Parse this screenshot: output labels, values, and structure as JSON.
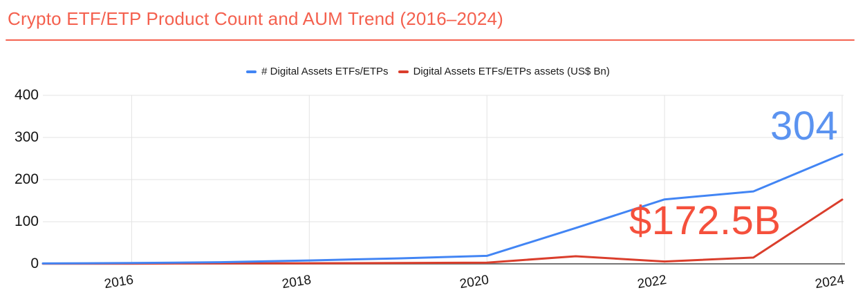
{
  "header": {
    "title": "Crypto ETF/ETP Product Count and AUM Trend (2016–2024)"
  },
  "theme": {
    "background": "#FFFFFF",
    "title_color": "#F4604E",
    "divider_color": "#F4614F",
    "grid_color": "#E3E3E3",
    "axis_line_color": "#757575",
    "tick_label_color": "#141414",
    "legend_text_color": "#1A1A1A",
    "count_series_color": "#4285F4",
    "aum_series_color": "#DA3E2C",
    "count_annotation_color": "#5B93F0",
    "aum_annotation_color": "#F5503C"
  },
  "chart_data": {
    "type": "line",
    "title": "Crypto ETF/ETP Product Count and AUM Trend (2016–2024)",
    "x": [
      2015,
      2016,
      2017,
      2018,
      2019,
      2020,
      2021,
      2022,
      2023,
      2024
    ],
    "x_ticks": [
      2016,
      2018,
      2020,
      2022,
      2024
    ],
    "x_tick_labels": [
      "2016",
      "2018",
      "2020",
      "2022",
      "2024"
    ],
    "y_ticks": [
      0,
      100,
      200,
      300,
      400
    ],
    "y_tick_labels": [
      "0",
      "100",
      "200",
      "300",
      "400"
    ],
    "ylim": [
      0,
      400
    ],
    "xlabel": "",
    "ylabel": "",
    "grid": true,
    "legend_position": "top-center",
    "series": [
      {
        "name": "# Digital Assets ETFs/ETPs",
        "color": "#4285F4",
        "values": [
          1,
          2,
          4,
          8,
          13,
          19,
          85,
          153,
          172,
          260
        ]
      },
      {
        "name": "Digital Assets ETFs/ETPs assets (US$ Bn)",
        "color": "#DA3E2C",
        "values": [
          0.3,
          0.5,
          1,
          1.5,
          2,
          3,
          18,
          5.5,
          15,
          152.5
        ]
      }
    ],
    "annotations": [
      {
        "text": "304",
        "color": "#5B93F0"
      },
      {
        "text": "$172.5B",
        "color": "#F5503C"
      }
    ]
  }
}
